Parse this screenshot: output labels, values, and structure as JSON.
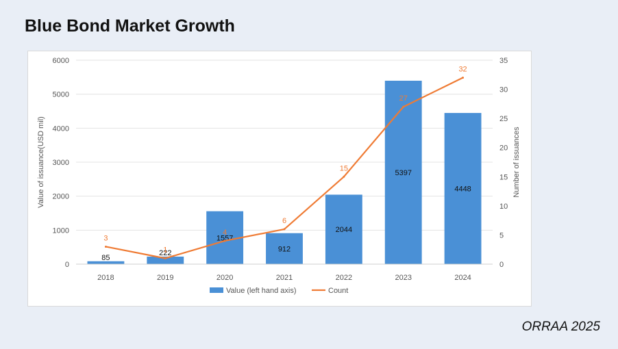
{
  "page": {
    "title": "Blue Bond Market Growth",
    "source": "ORRAA 2025"
  },
  "colors": {
    "bar": "#4a90d6",
    "line": "#ef7b34",
    "grid": "#e3e3e3",
    "axis_text": "#555555",
    "bar_label": "#111111",
    "line_label": "#ef7b34"
  },
  "chart_data": {
    "type": "bar",
    "title": "",
    "categories": [
      "2018",
      "2019",
      "2020",
      "2021",
      "2022",
      "2023",
      "2024"
    ],
    "series": [
      {
        "name": "Value (left hand axis)",
        "kind": "bar",
        "axis": "left",
        "values": [
          85,
          222,
          1557,
          912,
          2044,
          5397,
          4448
        ],
        "labels": [
          "85",
          "222",
          "1557",
          "912",
          "2044",
          "5397",
          "4448"
        ]
      },
      {
        "name": "Count",
        "kind": "line",
        "axis": "right",
        "values": [
          3,
          1,
          4,
          6,
          15,
          27,
          32
        ],
        "labels": [
          "3",
          "1",
          "4",
          "6",
          "15",
          "27",
          "32"
        ]
      }
    ],
    "ylabel": "Value of issuance(USD mil)",
    "y2label": "Number of issuances",
    "xlabel": "",
    "ylim": [
      0,
      6000
    ],
    "y2lim": [
      0,
      35
    ],
    "yticks": [
      "0",
      "1000",
      "2000",
      "3000",
      "4000",
      "5000",
      "6000"
    ],
    "y2ticks": [
      "0",
      "5",
      "10",
      "15",
      "20",
      "25",
      "30",
      "35"
    ],
    "grid": true,
    "legend_position": "bottom"
  }
}
